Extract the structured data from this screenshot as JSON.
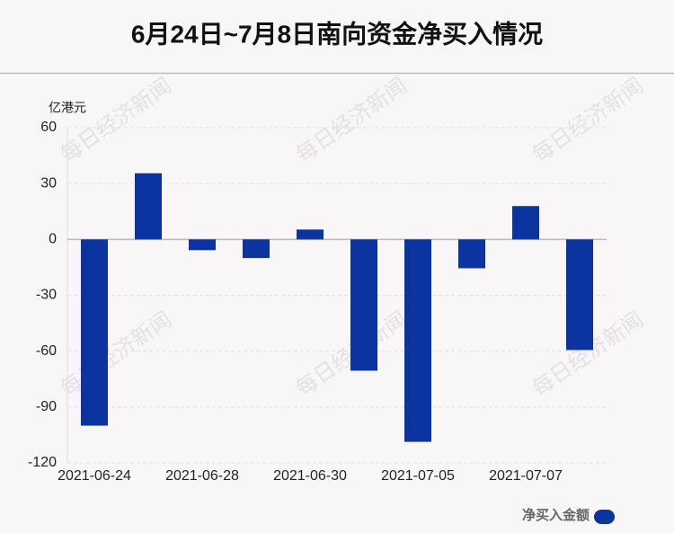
{
  "chart_data": {
    "type": "bar",
    "title": "6月24日~7月8日南向资金净买入情况",
    "y_label": "亿港元",
    "watermark": "每日经济新闻",
    "categories": [
      "2021-06-24",
      null,
      "2021-06-28",
      null,
      "2021-06-30",
      null,
      "2021-07-05",
      null,
      "2021-07-07",
      null
    ],
    "series": [
      {
        "name": "净买入金额",
        "color": "#0c34a0",
        "values": [
          -100,
          35.5,
          -5.8,
          -10,
          5.3,
          -70.5,
          -108.7,
          -15.5,
          17.9,
          -59.4
        ]
      }
    ],
    "ylim": [
      -120,
      60
    ],
    "yticks": [
      -120,
      -90,
      -60,
      -30,
      0,
      30,
      60
    ],
    "grid": true,
    "legend": "bottom-right"
  }
}
